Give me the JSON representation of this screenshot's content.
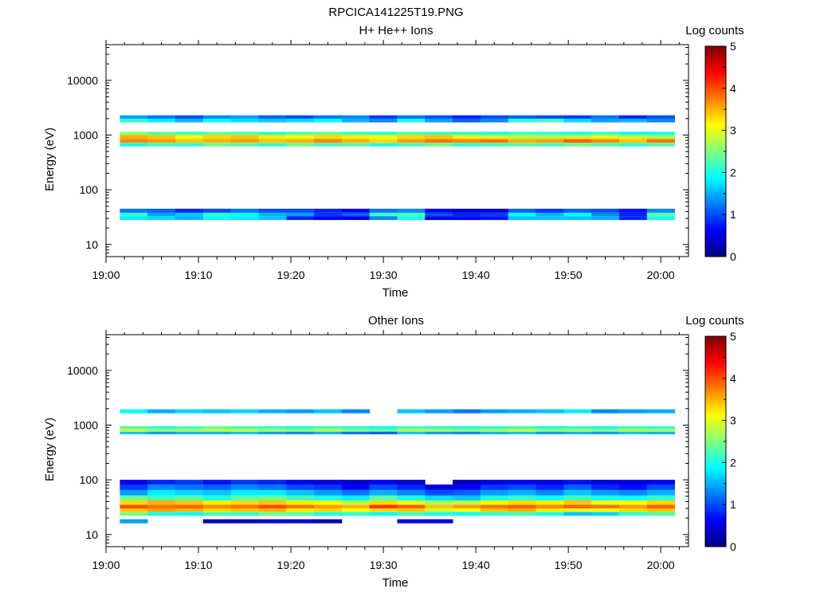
{
  "page_title": "RPCICA141225T19.PNG",
  "colors": {
    "colormap": [
      "#00007f",
      "#0000ff",
      "#007fff",
      "#00ffff",
      "#7fff7f",
      "#ffff00",
      "#ff7f00",
      "#ff0000",
      "#7f0000"
    ],
    "axis": "#000000",
    "background": "#ffffff"
  },
  "chart_data": [
    {
      "type": "heatmap",
      "title": "H+ He++ Ions",
      "xlabel": "Time",
      "ylabel": "Energy (eV)",
      "y_scale": "log",
      "ylim": [
        6,
        45000
      ],
      "y_ticks": [
        10,
        100,
        1000,
        10000
      ],
      "y_tick_labels": [
        "10",
        "100",
        "1000",
        "10000"
      ],
      "x_ticks": [
        "19:00",
        "19:10",
        "19:20",
        "19:30",
        "19:40",
        "19:50",
        "20:00"
      ],
      "xlim": [
        "19:00",
        "20:03"
      ],
      "colorbar": {
        "label": "Log counts",
        "range": [
          0,
          5
        ],
        "ticks": [
          "0",
          "1",
          "2",
          "3",
          "4",
          "5"
        ]
      },
      "time_bins": [
        "19:03",
        "19:06",
        "19:09",
        "19:12",
        "19:15",
        "19:18",
        "19:21",
        "19:24",
        "19:27",
        "19:30",
        "19:33",
        "19:36",
        "19:39",
        "19:42",
        "19:45",
        "19:48",
        "19:51",
        "19:54",
        "19:57",
        "20:00"
      ],
      "series": [
        {
          "energy_min": 28,
          "energy_max": 33,
          "values": [
            1.8,
            1.7,
            1.5,
            1.9,
            1.8,
            1.6,
            0.8,
            0.6,
            0.5,
            1.3,
            2.0,
            0.5,
            0.6,
            0.7,
            1.6,
            1.6,
            1.6,
            1.5,
            0.8,
            2.0
          ]
        },
        {
          "energy_min": 33,
          "energy_max": 38,
          "values": [
            2.1,
            1.4,
            1.6,
            2.1,
            1.9,
            1.5,
            1.4,
            0.9,
            1.1,
            2.2,
            2.2,
            1.0,
            0.8,
            0.9,
            1.9,
            1.5,
            1.9,
            1.3,
            0.8,
            2.3
          ]
        },
        {
          "energy_min": 38,
          "energy_max": 45,
          "values": [
            1.2,
            1.1,
            0.8,
            1.0,
            1.2,
            1.0,
            1.0,
            0.8,
            0.6,
            1.2,
            1.3,
            0.6,
            0.4,
            0.4,
            1.1,
            0.9,
            1.1,
            1.0,
            0.7,
            1.3
          ]
        },
        {
          "energy_min": 620,
          "energy_max": 720,
          "values": [
            2.0,
            2.2,
            2.1,
            2.4,
            2.3,
            2.1,
            2.4,
            2.2,
            2.3,
            2.0,
            2.2,
            2.4,
            2.1,
            2.2,
            2.3,
            2.2,
            2.4,
            2.3,
            2.1,
            2.3
          ]
        },
        {
          "energy_min": 720,
          "energy_max": 850,
          "values": [
            3.7,
            3.6,
            3.4,
            3.5,
            3.6,
            3.4,
            3.5,
            3.7,
            3.5,
            3.3,
            3.6,
            3.8,
            3.7,
            3.8,
            3.5,
            3.6,
            3.9,
            3.7,
            3.4,
            3.8
          ]
        },
        {
          "energy_min": 850,
          "energy_max": 1000,
          "values": [
            3.5,
            3.4,
            3.1,
            3.3,
            3.4,
            3.2,
            3.1,
            3.3,
            3.2,
            3.1,
            3.3,
            3.4,
            3.2,
            3.0,
            2.8,
            2.8,
            2.9,
            3.0,
            2.9,
            2.7
          ]
        },
        {
          "energy_min": 1000,
          "energy_max": 1150,
          "values": [
            2.6,
            2.3,
            2.2,
            2.4,
            2.3,
            2.1,
            2.3,
            2.4,
            2.2,
            2.1,
            2.3,
            2.2,
            2.1,
            2.0,
            2.2,
            2.1,
            2.0,
            2.2,
            1.9,
            2.0
          ]
        },
        {
          "energy_min": 1700,
          "energy_max": 2000,
          "values": [
            2.1,
            1.8,
            1.5,
            1.9,
            1.7,
            1.6,
            1.7,
            1.9,
            1.5,
            1.3,
            2.0,
            1.4,
            1.1,
            1.3,
            2.1,
            2.2,
            1.7,
            1.4,
            1.5,
            1.3
          ]
        },
        {
          "energy_min": 2000,
          "energy_max": 2300,
          "values": [
            1.4,
            1.2,
            1.0,
            1.3,
            1.4,
            1.1,
            1.0,
            1.2,
            1.3,
            0.9,
            1.2,
            1.0,
            0.8,
            1.0,
            1.1,
            1.0,
            0.9,
            1.2,
            0.8,
            1.0
          ]
        }
      ]
    },
    {
      "type": "heatmap",
      "title": "Other Ions",
      "xlabel": "Time",
      "ylabel": "Energy (eV)",
      "y_scale": "log",
      "ylim": [
        6,
        45000
      ],
      "y_ticks": [
        10,
        100,
        1000,
        10000
      ],
      "y_tick_labels": [
        "10",
        "100",
        "1000",
        "10000"
      ],
      "x_ticks": [
        "19:00",
        "19:10",
        "19:20",
        "19:30",
        "19:40",
        "19:50",
        "20:00"
      ],
      "xlim": [
        "19:00",
        "20:03"
      ],
      "colorbar": {
        "label": "Log counts",
        "range": [
          0,
          5
        ],
        "ticks": [
          "0",
          "1",
          "2",
          "3",
          "4",
          "5"
        ]
      },
      "time_bins": [
        "19:03",
        "19:06",
        "19:09",
        "19:12",
        "19:15",
        "19:18",
        "19:21",
        "19:24",
        "19:27",
        "19:30",
        "19:33",
        "19:36",
        "19:39",
        "19:42",
        "19:45",
        "19:48",
        "19:51",
        "19:54",
        "19:57",
        "20:00"
      ],
      "series": [
        {
          "energy_min": 16,
          "energy_max": 19,
          "values": [
            1.4,
            null,
            null,
            0.3,
            0.3,
            0.4,
            0.4,
            0.2,
            null,
            null,
            0.5,
            0.5,
            null,
            null,
            null,
            null,
            null,
            null,
            null,
            null
          ]
        },
        {
          "energy_min": 22,
          "energy_max": 26,
          "values": [
            2.5,
            2.0,
            1.9,
            2.2,
            2.1,
            2.4,
            2.3,
            2.0,
            2.1,
            1.9,
            2.2,
            2.0,
            1.9,
            2.1,
            2.2,
            2.0,
            1.6,
            1.7,
            2.1,
            2.3
          ]
        },
        {
          "energy_min": 26,
          "energy_max": 30,
          "values": [
            3.4,
            3.6,
            3.5,
            3.3,
            3.4,
            3.5,
            3.2,
            3.3,
            3.1,
            3.3,
            3.4,
            2.9,
            3.1,
            3.4,
            3.5,
            3.2,
            3.0,
            3.1,
            3.3,
            3.4
          ]
        },
        {
          "energy_min": 30,
          "energy_max": 35,
          "values": [
            4.0,
            3.8,
            3.9,
            3.7,
            3.8,
            4.0,
            3.8,
            3.6,
            3.5,
            4.1,
            3.9,
            3.4,
            3.6,
            3.8,
            3.9,
            3.7,
            3.9,
            3.8,
            3.6,
            3.9
          ]
        },
        {
          "energy_min": 35,
          "energy_max": 42,
          "values": [
            3.3,
            3.5,
            3.4,
            3.2,
            3.3,
            3.4,
            3.2,
            3.1,
            2.8,
            3.3,
            3.0,
            2.7,
            2.8,
            3.1,
            3.3,
            3.2,
            3.4,
            3.0,
            3.1,
            3.3
          ]
        },
        {
          "energy_min": 42,
          "energy_max": 52,
          "values": [
            2.4,
            2.2,
            2.3,
            2.0,
            2.3,
            2.4,
            2.2,
            2.0,
            1.8,
            2.3,
            2.0,
            1.7,
            1.6,
            2.0,
            2.1,
            1.9,
            2.2,
            2.0,
            1.9,
            2.1
          ]
        },
        {
          "energy_min": 52,
          "energy_max": 65,
          "values": [
            1.4,
            1.8,
            1.7,
            1.6,
            1.8,
            1.8,
            1.6,
            1.4,
            1.2,
            1.5,
            1.3,
            1.0,
            1.1,
            1.4,
            1.5,
            1.3,
            1.6,
            1.4,
            1.3,
            1.5
          ]
        },
        {
          "energy_min": 65,
          "energy_max": 82,
          "values": [
            0.9,
            1.3,
            1.2,
            1.1,
            1.3,
            1.2,
            1.0,
            0.9,
            0.6,
            1.0,
            0.8,
            0.5,
            0.6,
            0.9,
            1.0,
            0.8,
            1.1,
            0.8,
            0.7,
            1.0
          ]
        },
        {
          "energy_min": 82,
          "energy_max": 100,
          "values": [
            0.6,
            0.8,
            0.9,
            0.7,
            0.9,
            0.8,
            0.6,
            0.5,
            0.4,
            0.6,
            0.4,
            null,
            0.3,
            0.5,
            0.6,
            0.5,
            0.7,
            0.5,
            0.5,
            0.6
          ]
        },
        {
          "energy_min": 680,
          "energy_max": 760,
          "values": [
            1.6,
            1.4,
            1.5,
            1.5,
            1.6,
            1.4,
            1.3,
            1.5,
            1.2,
            1.1,
            1.6,
            1.4,
            1.3,
            1.5,
            1.6,
            1.4,
            1.5,
            1.4,
            1.6,
            1.5
          ]
        },
        {
          "energy_min": 760,
          "energy_max": 850,
          "values": [
            2.9,
            2.6,
            2.7,
            2.8,
            2.9,
            2.7,
            2.6,
            2.8,
            2.5,
            2.4,
            2.8,
            2.7,
            2.6,
            2.7,
            2.9,
            2.6,
            2.7,
            2.5,
            2.8,
            2.7
          ]
        },
        {
          "energy_min": 850,
          "energy_max": 960,
          "values": [
            2.3,
            2.1,
            2.2,
            2.4,
            2.2,
            2.1,
            2.0,
            2.2,
            2.1,
            1.9,
            2.2,
            2.1,
            2.0,
            2.1,
            2.2,
            2.0,
            2.1,
            2.0,
            2.2,
            2.1
          ]
        },
        {
          "energy_min": 1650,
          "energy_max": 1950,
          "values": [
            1.9,
            1.5,
            1.7,
            1.6,
            1.7,
            1.5,
            1.4,
            1.6,
            1.3,
            null,
            1.6,
            1.4,
            1.2,
            1.4,
            1.5,
            1.6,
            1.8,
            1.3,
            1.4,
            1.5
          ]
        }
      ]
    }
  ]
}
